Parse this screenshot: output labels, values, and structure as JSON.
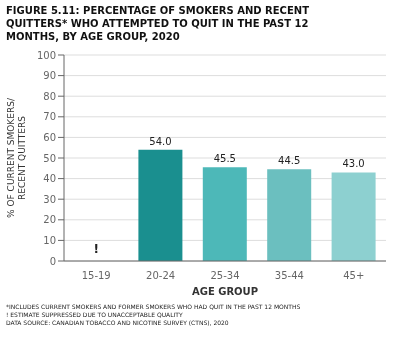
{
  "chart_data": {
    "type": "bar",
    "title": "FIGURE 5.11: PERCENTAGE OF SMOKERS AND RECENT\nQUITTERS* WHO ATTEMPTED TO QUIT IN THE PAST 12\nMONTHS, BY AGE GROUP, 2020",
    "categories": [
      "15-19",
      "20-24",
      "25-34",
      "35-44",
      "45+"
    ],
    "values": [
      null,
      54.0,
      45.5,
      44.5,
      43.0
    ],
    "value_labels": [
      "!",
      "54.0",
      "45.5",
      "44.5",
      "43.0"
    ],
    "data_labels": true,
    "colors": [
      "#cccccc",
      "#1a8f8f",
      "#4db8b8",
      "#6bbfbf",
      "#8dd0d0"
    ],
    "xlabel": "AGE GROUP",
    "ylabel": "% OF CURRENT SMOKERS/\nRECENT QUITTERS",
    "ylim": [
      0,
      100
    ],
    "yticks": [
      0,
      10,
      20,
      30,
      40,
      50,
      60,
      70,
      80,
      90,
      100
    ],
    "grid": true,
    "annotations": [
      "*INCLUDES CURRENT SMOKERS AND FORMER SMOKERS WHO HAD QUIT IN THE PAST 12 MONTHS",
      "! ESTIMATE SUPPRESSED DUE TO UNACCEPTABLE QUALITY",
      "DATA SOURCE: CANADIAN TOBACCO AND NICOTINE SURVEY (CTNS), 2020"
    ]
  }
}
